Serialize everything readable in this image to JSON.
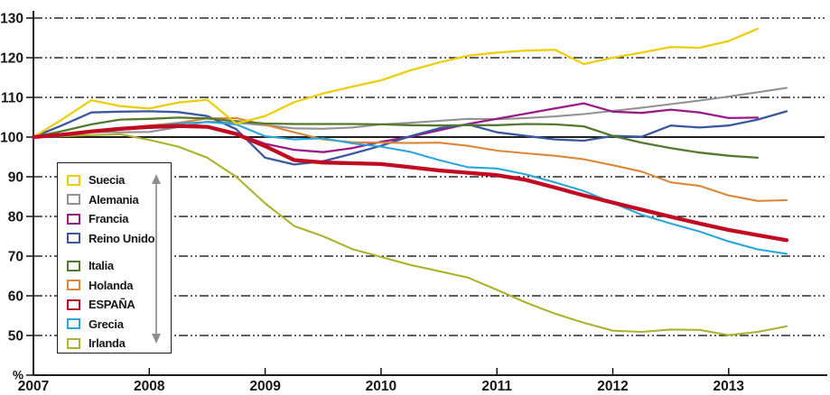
{
  "chart_data": {
    "type": "line",
    "title": "",
    "x_start": 2007,
    "x_step_years": 0.25,
    "x_tick_labels": [
      "2007",
      "2008",
      "2009",
      "2010",
      "2011",
      "2012",
      "2013"
    ],
    "y_tick_labels": [
      130,
      120,
      110,
      100,
      90,
      80,
      70,
      60,
      50
    ],
    "y_gridlines": [
      130,
      120,
      110,
      90,
      80,
      70,
      60,
      50
    ],
    "baseline": 100,
    "ylim": [
      40,
      130
    ],
    "unit_label": "%",
    "grid": "dash-dot horizontal",
    "legend_position": "inside-left",
    "legend_gap_after": "Reino Unido",
    "series": [
      {
        "name": "Suecia",
        "color": "#EDCE0E",
        "width": 2.3,
        "values": [
          100,
          104.5,
          109.3,
          107.8,
          107.2,
          108.7,
          109.4,
          103.4,
          105.3,
          108.8,
          111.0,
          112.7,
          114.3,
          116.8,
          118.8,
          120.5,
          121.3,
          121.8,
          122.0,
          118.4,
          120.0,
          121.3,
          122.7,
          122.5,
          124.2,
          127.3
        ]
      },
      {
        "name": "Alemania",
        "color": "#929292",
        "width": 2.1,
        "values": [
          100,
          100.8,
          101.3,
          101.2,
          101.3,
          102.5,
          103.9,
          103.6,
          103.0,
          102.2,
          102.1,
          102.4,
          103.2,
          103.6,
          104.1,
          104.6,
          104.5,
          104.8,
          105.2,
          105.8,
          106.6,
          107.4,
          108.3,
          109.2,
          110.2,
          111.3,
          112.4
        ]
      },
      {
        "name": "Francia",
        "color": "#9A1B86",
        "width": 2.3,
        "values": [
          100,
          100.8,
          101.4,
          101.9,
          102.3,
          102.6,
          102.4,
          100.9,
          98.3,
          96.8,
          96.2,
          97.2,
          98.8,
          100.1,
          101.7,
          103.3,
          104.6,
          105.9,
          107.2,
          108.5,
          106.4,
          106.1,
          106.9,
          106.2,
          104.8,
          104.9
        ]
      },
      {
        "name": "Reino Unido",
        "color": "#3A57A0",
        "width": 2.3,
        "values": [
          100,
          103.0,
          106.2,
          106.4,
          106.5,
          106.3,
          105.3,
          102.0,
          94.8,
          93.1,
          93.9,
          95.8,
          97.8,
          100.2,
          102.2,
          103.2,
          101.2,
          100.3,
          99.4,
          99.1,
          100.3,
          100.1,
          102.9,
          102.4,
          102.9,
          104.4,
          106.5
        ]
      },
      {
        "name": "Italia",
        "color": "#54792E",
        "width": 2.3,
        "values": [
          100,
          101.5,
          103.2,
          104.4,
          104.6,
          104.9,
          104.7,
          104.0,
          103.4,
          103.3,
          103.3,
          103.3,
          103.2,
          103.0,
          102.9,
          103.0,
          103.0,
          103.3,
          103.2,
          102.7,
          100.3,
          98.6,
          97.2,
          96.1,
          95.3,
          94.8
        ]
      },
      {
        "name": "Holanda",
        "color": "#DC8637",
        "width": 2.1,
        "values": [
          100,
          100.8,
          101.5,
          102.2,
          102.9,
          103.6,
          104.7,
          104.8,
          103.1,
          101.2,
          99.4,
          98.7,
          98.6,
          98.5,
          98.6,
          97.8,
          96.6,
          95.9,
          95.3,
          94.4,
          92.9,
          91.3,
          88.6,
          87.7,
          85.3,
          83.9,
          84.1
        ]
      },
      {
        "name": "ESPAÑA",
        "color": "#C00B22",
        "width": 4.3,
        "values": [
          100,
          100.6,
          101.4,
          102.1,
          102.6,
          102.8,
          102.6,
          100.8,
          97.7,
          94.2,
          93.6,
          93.4,
          93.2,
          92.4,
          91.6,
          91.0,
          90.4,
          89.2,
          87.3,
          85.3,
          83.5,
          81.7,
          79.9,
          78.2,
          76.6,
          75.3,
          74.0
        ]
      },
      {
        "name": "Grecia",
        "color": "#29A6DC",
        "width": 2.1,
        "values": [
          100,
          100.7,
          101.3,
          102.1,
          102.7,
          103.4,
          103.8,
          103.2,
          100.2,
          99.4,
          99.7,
          98.4,
          97.6,
          96.3,
          94.2,
          92.4,
          92.1,
          90.6,
          88.6,
          86.4,
          83.4,
          80.4,
          78.2,
          76.2,
          73.7,
          71.7,
          70.6
        ]
      },
      {
        "name": "Irlanda",
        "color": "#ACB22D",
        "width": 2.1,
        "values": [
          100,
          100.2,
          100.5,
          100.7,
          99.3,
          97.6,
          94.8,
          90.0,
          83.3,
          77.6,
          75.0,
          71.8,
          69.8,
          67.8,
          66.2,
          64.6,
          61.5,
          58.3,
          55.5,
          53.2,
          51.2,
          50.9,
          51.5,
          51.4,
          50.1,
          50.9,
          52.3
        ]
      }
    ]
  }
}
